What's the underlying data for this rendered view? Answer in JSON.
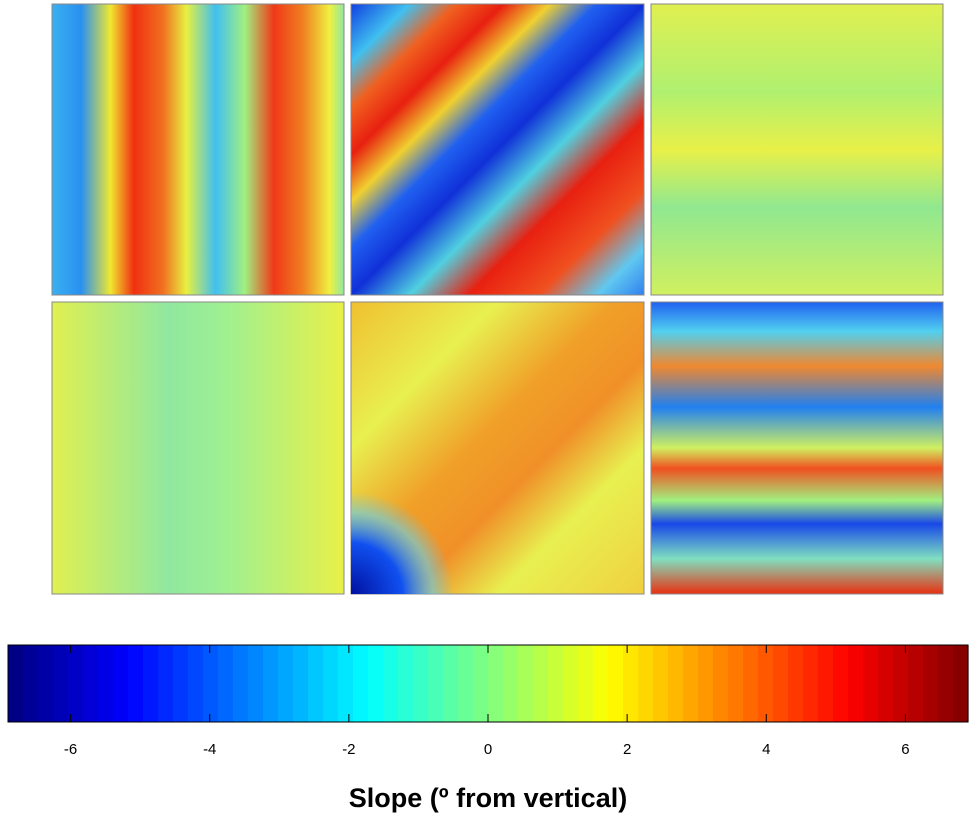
{
  "chart_data": {
    "type": "colorbar",
    "colormap": "jet",
    "xlabel": "Slope (º from vertical)",
    "xlim": [
      -6.9,
      6.9
    ],
    "xticks": [
      -6,
      -4,
      -2,
      0,
      2,
      4,
      6
    ]
  }
}
